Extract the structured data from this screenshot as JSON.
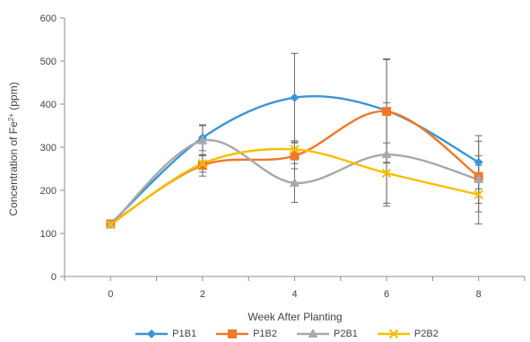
{
  "chart_data": {
    "type": "line",
    "title": "",
    "xlabel": "Week After Planting",
    "ylabel_main": "Concentration of Fe",
    "ylabel_superscript": "2+",
    "ylabel_unit": " (ppm)",
    "x": [
      0,
      2,
      4,
      6,
      8
    ],
    "xlim": [
      -1,
      9
    ],
    "ylim": [
      0,
      600
    ],
    "xticks": [
      "0",
      "2",
      "4",
      "6",
      "8"
    ],
    "yticks": [
      "0",
      "100",
      "200",
      "300",
      "400",
      "500",
      "600"
    ],
    "grid": false,
    "legend_position": "bottom",
    "smooth": true,
    "series": [
      {
        "name": "P1B1",
        "color": "#3b95d6",
        "marker": "diamond",
        "values": [
          122,
          322,
          415,
          385,
          265
        ],
        "error": [
          0,
          30,
          103,
          120,
          62
        ]
      },
      {
        "name": "P1B2",
        "color": "#f07828",
        "marker": "square",
        "values": [
          122,
          258,
          280,
          383,
          232
        ],
        "error": [
          0,
          25,
          30,
          120,
          82
        ]
      },
      {
        "name": "P2B1",
        "color": "#a8a8a8",
        "marker": "triangle",
        "values": [
          120,
          315,
          217,
          283,
          225
        ],
        "error": [
          0,
          35,
          45,
          120,
          55
        ]
      },
      {
        "name": "P2B2",
        "color": "#f5c000",
        "marker": "x",
        "values": [
          120,
          262,
          295,
          240,
          190
        ],
        "error": [
          0,
          20,
          20,
          70,
          68
        ]
      }
    ]
  }
}
